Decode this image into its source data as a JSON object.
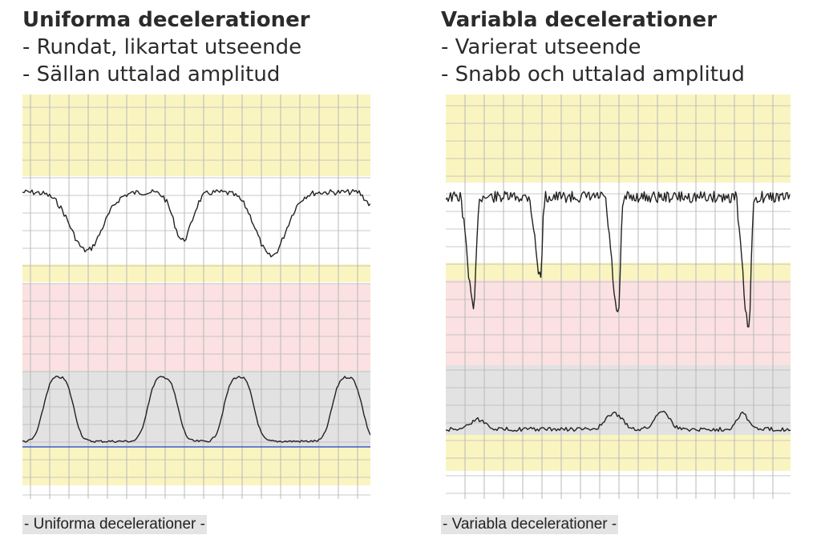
{
  "left": {
    "title": "Uniforma decelerationer",
    "bullets": [
      "- Rundat, likartat utseende",
      "- Sällan uttalad amplitud"
    ],
    "caption": "- Uniforma decelerationer -"
  },
  "right": {
    "title": "Variabla decelerationer",
    "bullets": [
      "- Varierat utseende",
      "- Snabb och uttalad amplitud"
    ],
    "caption": "- Variabla decelerationer -"
  },
  "colors": {
    "yellow_band": "#faf5c0",
    "pink_band": "#fbe1e1",
    "gray_band": "#e2e2e2",
    "grid_major": "#b8b8b8",
    "trace": "#222222",
    "baseline_blue": "#3a5bd0"
  }
}
